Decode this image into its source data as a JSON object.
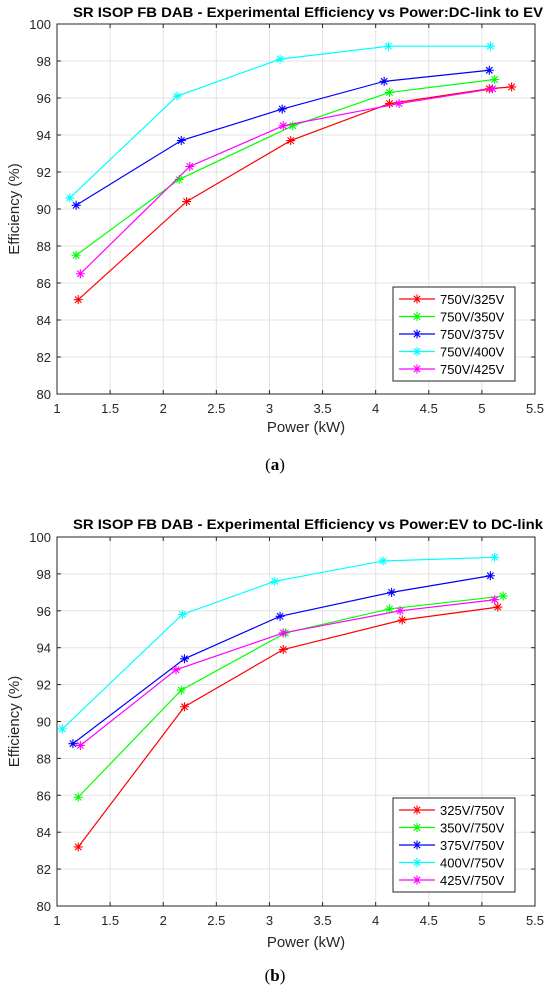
{
  "captions": {
    "a_open": "(",
    "a_letter": "a",
    "a_close": ")",
    "b_open": "(",
    "b_letter": "b",
    "b_close": ")"
  },
  "chart_data": [
    {
      "type": "line",
      "title": "SR ISOP FB DAB - Experimental Efficiency vs Power:DC-link to EV",
      "xlabel": "Power (kW)",
      "ylabel": "Efficiency (%)",
      "xlim": [
        1,
        5.5
      ],
      "ylim": [
        80,
        100
      ],
      "xticks": [
        1,
        1.5,
        2,
        2.5,
        3,
        3.5,
        4,
        4.5,
        5,
        5.5
      ],
      "xtick_labels": [
        "1",
        "1.5",
        "2",
        "2.5",
        "3",
        "3.5",
        "4",
        "4.5",
        "5",
        "5.5"
      ],
      "yticks": [
        80,
        82,
        84,
        86,
        88,
        90,
        92,
        94,
        96,
        98,
        100
      ],
      "ytick_labels": [
        "80",
        "82",
        "84",
        "86",
        "88",
        "90",
        "92",
        "94",
        "96",
        "98",
        "100"
      ],
      "grid": true,
      "legend_position": "bottom-right",
      "marker": "*",
      "series": [
        {
          "name": "750V/325V",
          "color": "#ff0000",
          "x": [
            1.2,
            2.22,
            3.2,
            4.13,
            5.07,
            5.28
          ],
          "y": [
            85.1,
            90.4,
            93.7,
            95.7,
            96.5,
            96.6
          ]
        },
        {
          "name": "750V/350V",
          "color": "#00ff00",
          "x": [
            1.18,
            2.15,
            3.22,
            4.13,
            5.12
          ],
          "y": [
            87.5,
            91.6,
            94.5,
            96.3,
            97.0
          ]
        },
        {
          "name": "750V/375V",
          "color": "#0000ff",
          "x": [
            1.18,
            2.17,
            3.12,
            4.08,
            5.07
          ],
          "y": [
            90.2,
            93.7,
            95.4,
            96.9,
            97.5
          ]
        },
        {
          "name": "750V/400V",
          "color": "#00ffff",
          "x": [
            1.12,
            2.13,
            3.1,
            4.12,
            5.08
          ],
          "y": [
            90.6,
            96.1,
            98.1,
            98.8,
            98.8
          ]
        },
        {
          "name": "750V/425V",
          "color": "#ff00ff",
          "x": [
            1.22,
            2.25,
            3.13,
            4.22,
            5.1
          ],
          "y": [
            86.5,
            92.3,
            94.5,
            95.7,
            96.5
          ]
        }
      ]
    },
    {
      "type": "line",
      "title": "SR ISOP FB DAB - Experimental Efficiency vs Power:EV to DC-link",
      "xlabel": "Power (kW)",
      "ylabel": "Efficiency (%)",
      "xlim": [
        1,
        5.5
      ],
      "ylim": [
        80,
        100
      ],
      "xticks": [
        1,
        1.5,
        2,
        2.5,
        3,
        3.5,
        4,
        4.5,
        5,
        5.5
      ],
      "xtick_labels": [
        "1",
        "1.5",
        "2",
        "2.5",
        "3",
        "3.5",
        "4",
        "4.5",
        "5",
        "5.5"
      ],
      "yticks": [
        80,
        82,
        84,
        86,
        88,
        90,
        92,
        94,
        96,
        98,
        100
      ],
      "ytick_labels": [
        "80",
        "82",
        "84",
        "86",
        "88",
        "90",
        "92",
        "94",
        "96",
        "98",
        "100"
      ],
      "grid": true,
      "legend_position": "bottom-right",
      "marker": "*",
      "series": [
        {
          "name": "325V/750V",
          "color": "#ff0000",
          "x": [
            1.2,
            2.2,
            3.13,
            4.25,
            5.15
          ],
          "y": [
            83.2,
            90.8,
            93.9,
            95.5,
            96.2
          ]
        },
        {
          "name": "350V/750V",
          "color": "#00ff00",
          "x": [
            1.2,
            2.17,
            3.15,
            4.13,
            5.2
          ],
          "y": [
            85.9,
            91.7,
            94.8,
            96.1,
            96.8
          ]
        },
        {
          "name": "375V/750V",
          "color": "#0000ff",
          "x": [
            1.15,
            2.2,
            3.1,
            4.15,
            5.08
          ],
          "y": [
            88.8,
            93.4,
            95.7,
            97.0,
            97.9
          ]
        },
        {
          "name": "400V/750V",
          "color": "#00ffff",
          "x": [
            1.05,
            2.18,
            3.05,
            4.07,
            5.12
          ],
          "y": [
            89.6,
            95.8,
            97.6,
            98.7,
            98.9
          ]
        },
        {
          "name": "425V/750V",
          "color": "#ff00ff",
          "x": [
            1.22,
            2.12,
            3.13,
            4.23,
            5.12
          ],
          "y": [
            88.7,
            92.8,
            94.8,
            96.0,
            96.6
          ]
        }
      ]
    }
  ]
}
